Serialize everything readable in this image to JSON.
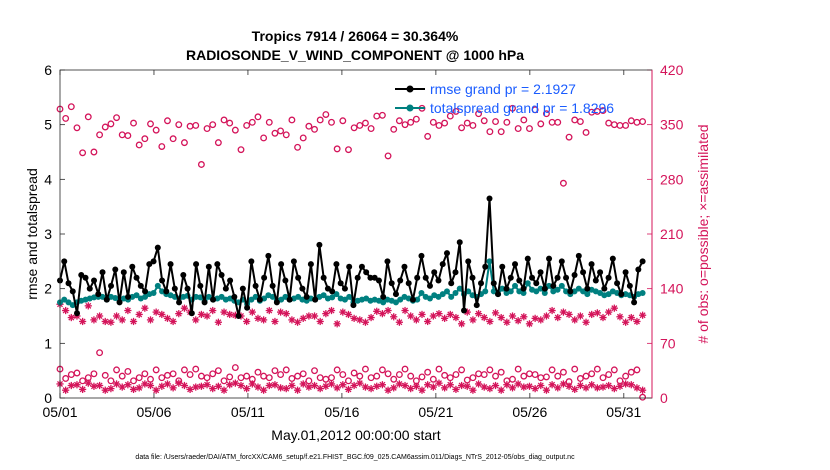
{
  "chart_data": {
    "type": "line",
    "title_line1": "Tropics 7914 / 26064 = 30.364%",
    "title_line2": "RADIOSONDE_V_WIND_COMPONENT @ 1000 hPa",
    "xlabel": "May.01,2012 00:00:00 start",
    "ylabel_left": "rmse and totalspread",
    "ylabel_right": "# of obs: o=possible; ×=assimilated",
    "footer": "data file: /Users/raeder/DAI/ATM_forcXX/CAM6_setup/f.e21.FHIST_BGC.f09_025.CAM6assim.011/Diags_NTrS_2012-05/obs_diag_output.nc",
    "xlim": [
      0,
      31.5
    ],
    "ylim_left": [
      0,
      6
    ],
    "ylim_right": [
      0,
      420
    ],
    "x_ticks": [
      0,
      5,
      10,
      15,
      20,
      25,
      30
    ],
    "x_tick_labels": [
      "05/01",
      "05/06",
      "05/11",
      "05/16",
      "05/21",
      "05/26",
      "05/31"
    ],
    "y_left_ticks": [
      "0",
      "1",
      "2",
      "3",
      "4",
      "5",
      "6"
    ],
    "y_right_ticks": [
      "0",
      "70",
      "140",
      "210",
      "280",
      "350",
      "420"
    ],
    "legend_location": "top-right",
    "colors": {
      "rmse": "#000000",
      "spread": "#008080",
      "obs": "#d4145a"
    },
    "series": [
      {
        "name": "rmse grand pr = 2.1927",
        "axis": "left",
        "values": [
          2.15,
          2.5,
          2.1,
          1.95,
          1.55,
          2.25,
          2.2,
          2.0,
          2.15,
          1.9,
          2.3,
          1.8,
          2.05,
          2.35,
          1.75,
          2.3,
          1.85,
          2.4,
          2.2,
          2.05,
          1.95,
          2.45,
          2.5,
          2.75,
          2.15,
          1.95,
          2.45,
          2.0,
          1.75,
          2.25,
          2.0,
          1.55,
          2.45,
          2.05,
          1.75,
          2.4,
          1.8,
          2.45,
          2.25,
          2.0,
          2.15,
          1.85,
          1.5,
          2.0,
          1.65,
          2.5,
          2.05,
          1.8,
          2.2,
          2.6,
          2.05,
          1.75,
          2.45,
          2.15,
          1.8,
          2.5,
          2.2,
          2.0,
          1.85,
          2.45,
          1.8,
          2.8,
          2.2,
          2.0,
          1.95,
          2.45,
          2.1,
          2.0,
          2.4,
          1.7,
          2.2,
          2.4,
          2.3,
          2.2,
          2.2,
          2.15,
          1.85,
          2.5,
          2.1,
          1.9,
          2.15,
          2.4,
          2.1,
          1.8,
          2.2,
          2.6,
          2.2,
          2.05,
          2.3,
          2.15,
          2.45,
          2.65,
          2.1,
          2.3,
          2.85,
          1.6,
          2.5,
          2.2,
          1.7,
          2.1,
          2.4,
          3.65,
          2.1,
          1.9,
          2.4,
          2.0,
          2.2,
          2.45,
          2.15,
          2.0,
          2.55,
          2.2,
          2.1,
          2.3,
          2.0,
          2.55,
          2.05,
          2.2,
          2.5,
          2.2,
          1.95,
          2.25,
          2.6,
          2.3,
          2.0,
          2.45,
          2.15,
          2.3,
          2.0,
          2.2,
          2.55,
          2.1,
          1.9,
          2.3,
          2.05,
          1.75,
          2.35,
          2.5
        ]
      },
      {
        "name": "totalspread grand pr = 1.8296",
        "axis": "left",
        "values": [
          1.75,
          1.8,
          1.75,
          1.7,
          1.75,
          1.78,
          1.8,
          1.82,
          1.84,
          1.85,
          1.85,
          1.8,
          1.85,
          1.83,
          1.78,
          1.82,
          1.8,
          1.85,
          1.88,
          1.82,
          1.85,
          1.9,
          1.92,
          2.05,
          1.95,
          1.9,
          1.88,
          1.85,
          1.82,
          1.85,
          1.87,
          1.8,
          1.85,
          1.84,
          1.78,
          1.85,
          1.8,
          1.82,
          1.85,
          1.8,
          1.82,
          1.78,
          1.75,
          1.8,
          1.72,
          1.8,
          1.85,
          1.78,
          1.82,
          1.88,
          1.85,
          1.78,
          1.8,
          1.85,
          1.8,
          1.82,
          1.85,
          1.8,
          1.78,
          1.82,
          1.8,
          1.85,
          1.88,
          1.82,
          1.84,
          1.9,
          1.82,
          1.8,
          1.85,
          1.75,
          1.78,
          1.8,
          1.82,
          1.78,
          1.8,
          1.78,
          1.75,
          1.8,
          1.78,
          1.75,
          1.8,
          1.85,
          1.82,
          1.78,
          1.8,
          1.92,
          1.85,
          1.82,
          1.88,
          1.85,
          1.9,
          1.95,
          1.85,
          1.92,
          2.0,
          1.9,
          1.95,
          1.88,
          1.85,
          1.9,
          1.95,
          2.5,
          1.95,
          1.9,
          2.0,
          1.92,
          1.95,
          2.05,
          1.95,
          1.92,
          2.1,
          1.98,
          1.95,
          2.0,
          1.92,
          2.05,
          1.95,
          1.98,
          2.05,
          1.95,
          1.9,
          1.95,
          2.0,
          1.95,
          1.9,
          1.98,
          1.95,
          1.92,
          1.88,
          1.9,
          1.95,
          1.92,
          1.88,
          1.9,
          1.88,
          1.85,
          1.9,
          1.92
        ]
      },
      {
        "name": "obs possible (upper band)",
        "axis": "right",
        "marker": "circle",
        "values": [
          370,
          358,
          373,
          346,
          314,
          360,
          315,
          337,
          347,
          351,
          359,
          337,
          336,
          352,
          324,
          332,
          351,
          343,
          322,
          355,
          332,
          350,
          327,
          348,
          349,
          299,
          345,
          350,
          327,
          356,
          352,
          343,
          318,
          349,
          353,
          360,
          333,
          353,
          339,
          342,
          337,
          356,
          321,
          333,
          348,
          344,
          356,
          363,
          353,
          319,
          355,
          318,
          346,
          349,
          352,
          345,
          361,
          362,
          310,
          344,
          355,
          350,
          353,
          357,
          371,
          335,
          353,
          349,
          352,
          361,
          367,
          346,
          352,
          349,
          364,
          355,
          341,
          354,
          341,
          353,
          371,
          345,
          356,
          345,
          369,
          351,
          364,
          353,
          353,
          275,
          334,
          356,
          354,
          340,
          366,
          367,
          368,
          352,
          350,
          349,
          349,
          355,
          353,
          354
        ]
      },
      {
        "name": "obs assimilated (upper band)",
        "axis": "right",
        "marker": "asterisk",
        "values": [
          120,
          112,
          103,
          105,
          98,
          118,
          100,
          105,
          98,
          97,
          105,
          100,
          112,
          98,
          107,
          115,
          100,
          110,
          107,
          102,
          98,
          108,
          115,
          110,
          100,
          107,
          105,
          112,
          97,
          110,
          107,
          106,
          105,
          98,
          110,
          102,
          100,
          112,
          98,
          110,
          108,
          100,
          97,
          102,
          105,
          105,
          98,
          108,
          112,
          95,
          110,
          107,
          102,
          100,
          97,
          103,
          111,
          108,
          112,
          104,
          97,
          112,
          105,
          100,
          107,
          98,
          105,
          108,
          102,
          107,
          103,
          95,
          110,
          100,
          108,
          103,
          98,
          109,
          103,
          97,
          105,
          99,
          104,
          95,
          102,
          100,
          105,
          112,
          103,
          110,
          107,
          100,
          105,
          97,
          107,
          109,
          103,
          110,
          115,
          104,
          97,
          103,
          98,
          106
        ]
      },
      {
        "name": "obs possible (lower band)",
        "axis": "right",
        "marker": "circle",
        "values": [
          37,
          25,
          30,
          32,
          22,
          26,
          31,
          58,
          29,
          22,
          36,
          28,
          34,
          22,
          26,
          31,
          24,
          36,
          26,
          29,
          31,
          22,
          36,
          30,
          37,
          28,
          26,
          31,
          35,
          22,
          27,
          39,
          26,
          28,
          24,
          33,
          28,
          26,
          35,
          30,
          36,
          25,
          28,
          31,
          22,
          35,
          26,
          24,
          26,
          36,
          30,
          22,
          32,
          28,
          37,
          26,
          28,
          36,
          31,
          24,
          30,
          37,
          28,
          22,
          27,
          33,
          24,
          37,
          29,
          26,
          30,
          36,
          23,
          26,
          31,
          30,
          36,
          28,
          33,
          22,
          24,
          37,
          28,
          31,
          30,
          26,
          27,
          36,
          28,
          33,
          21,
          37,
          25,
          28,
          31,
          37,
          26,
          30,
          36,
          22,
          28,
          33,
          36,
          1
        ]
      },
      {
        "name": "obs assimilated (lower band)",
        "axis": "right",
        "marker": "asterisk",
        "values": [
          18,
          10,
          16,
          17,
          11,
          19,
          15,
          16,
          10,
          12,
          18,
          14,
          17,
          11,
          13,
          18,
          16,
          10,
          15,
          18,
          13,
          19,
          16,
          11,
          14,
          15,
          17,
          12,
          15,
          10,
          17,
          19,
          16,
          12,
          18,
          14,
          10,
          16,
          17,
          13,
          12,
          16,
          10,
          18,
          14,
          16,
          12,
          15,
          18,
          13,
          17,
          11,
          16,
          19,
          14,
          12,
          15,
          17,
          10,
          13,
          18,
          16,
          12,
          15,
          10,
          17,
          14,
          19,
          13,
          17,
          11,
          16,
          15,
          10,
          18,
          14,
          12,
          16,
          10,
          17,
          13,
          18,
          14,
          15,
          12,
          16,
          10,
          17,
          13,
          18,
          15,
          11,
          16,
          13,
          17,
          13,
          14,
          16,
          12,
          15,
          18,
          17,
          13,
          10
        ]
      }
    ]
  }
}
